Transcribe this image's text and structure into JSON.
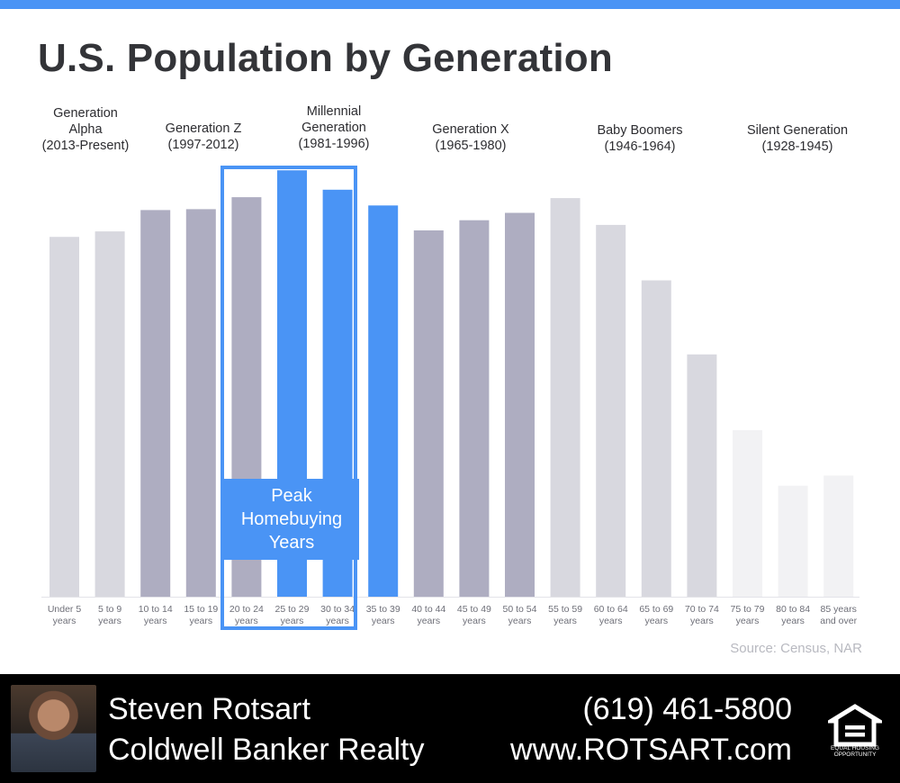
{
  "title": "U.S. Population by Generation",
  "source": "Source: Census, NAR",
  "peak_label": "Peak\nHomebuying\nYears",
  "generations": [
    {
      "label": "Generation\nAlpha\n(2013-Present)"
    },
    {
      "label": "Generation Z\n(1997-2012)"
    },
    {
      "label": "Millennial\nGeneration\n(1981-1996)"
    },
    {
      "label": "Generation X\n(1965-1980)"
    },
    {
      "label": "Baby Boomers\n(1946-1964)"
    },
    {
      "label": "Silent Generation\n(1928-1945)"
    }
  ],
  "chart_data": {
    "type": "bar",
    "title": "U.S. Population by Generation",
    "xlabel": "",
    "ylabel": "",
    "grid": false,
    "categories": [
      [
        "Under 5",
        "years"
      ],
      [
        "5 to 9",
        "years"
      ],
      [
        "10 to 14",
        "years"
      ],
      [
        "15 to 19",
        "years"
      ],
      [
        "20 to 24",
        "years"
      ],
      [
        "25 to 29",
        "years"
      ],
      [
        "30 to 34",
        "years"
      ],
      [
        "35 to 39",
        "years"
      ],
      [
        "40 to 44",
        "years"
      ],
      [
        "45 to 49",
        "years"
      ],
      [
        "50 to 54",
        "years"
      ],
      [
        "55 to 59",
        "years"
      ],
      [
        "60 to 64",
        "years"
      ],
      [
        "65 to 69",
        "years"
      ],
      [
        "70 to 74",
        "years"
      ],
      [
        "75 to 79",
        "years"
      ],
      [
        "80 to 84",
        "years"
      ],
      [
        "85 years",
        "and over"
      ]
    ],
    "values": [
      389,
      395,
      418,
      419,
      432,
      461,
      440,
      423,
      396,
      407,
      415,
      431,
      402,
      342,
      262,
      180,
      120,
      131
    ],
    "ylim": [
      0,
      470
    ],
    "bar_colors": [
      "#d8d8df",
      "#d8d8df",
      "#aeadc1",
      "#aeadc1",
      "#aeadc1",
      "#4a94f5",
      "#4a94f5",
      "#4a94f5",
      "#aeadc1",
      "#aeadc1",
      "#aeadc1",
      "#d8d8df",
      "#d8d8df",
      "#d8d8df",
      "#d8d8df",
      "#f2f2f4",
      "#f2f2f4",
      "#f2f2f4"
    ],
    "highlight_range": [
      "20 to 24",
      "30 to 34"
    ]
  },
  "footer": {
    "name": "Steven Rotsart",
    "company": "Coldwell Banker Realty",
    "phone": "(619) 461-5800",
    "website": "www.ROTSART.com",
    "badge_text": "EQUAL HOUSING\nOPPORTUNITY",
    "badge_icon": "equal-housing-icon"
  },
  "colors": {
    "accent": "#4a94f5",
    "gen_z_x": "#aeadc1",
    "alpha_boomers": "#d8d8df",
    "silent": "#f2f2f4",
    "footer_bg": "#000000"
  }
}
